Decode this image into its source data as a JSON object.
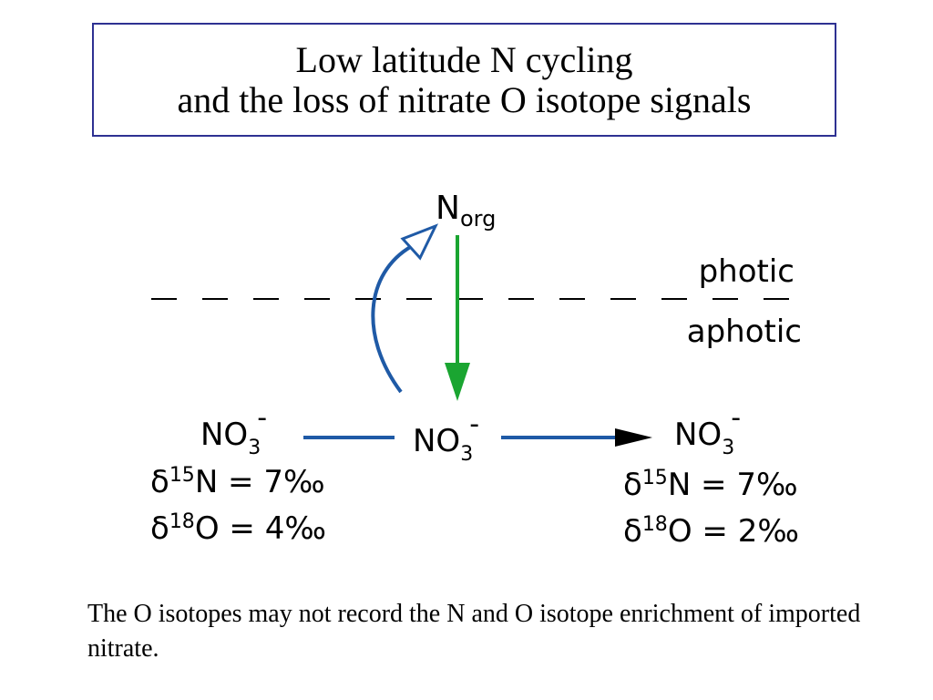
{
  "title": {
    "line1": "Low latitude N cycling",
    "line2": "and the loss of nitrate O isotope signals"
  },
  "diagram": {
    "n_org": {
      "base": "N",
      "sub": "org"
    },
    "zones": {
      "upper": "photic",
      "lower": "aphotic"
    },
    "nitrate": {
      "base": "NO",
      "sub": "3",
      "sup": "-"
    },
    "left_pool": {
      "n_iso": {
        "delta": "δ",
        "mass": "15",
        "element": "N",
        "equals": " = ",
        "value": "7‰"
      },
      "o_iso": {
        "delta": "δ",
        "mass": "18",
        "element": "O",
        "equals": " = ",
        "value": "4‰"
      }
    },
    "right_pool": {
      "n_iso": {
        "delta": "δ",
        "mass": "15",
        "element": "N",
        "equals": " = ",
        "value": "7‰"
      },
      "o_iso": {
        "delta": "δ",
        "mass": "18",
        "element": "O",
        "equals": " = ",
        "value": "2‰"
      }
    },
    "colors": {
      "uptake_arrow": "#1f5aa6",
      "flow_line": "#1f5aa6",
      "export_arrow": "#1aa531",
      "title_border": "#2e3192"
    }
  },
  "caption": "The O isotopes may not record the N and O isotope enrichment of imported nitrate."
}
